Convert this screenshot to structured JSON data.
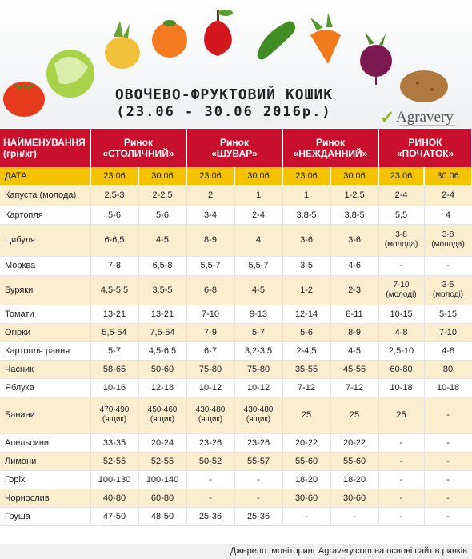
{
  "title_line1": "ОВОЧЕВО-ФРУКТОВИЙ КОШИК",
  "title_line2": "(23.06 - 30.06 2016р.)",
  "logo": "Agravery",
  "header": {
    "name": "НАЙМЕНУВАННЯ (грн/кг)",
    "markets": [
      "Ринок «СТОЛИЧНИЙ»",
      "Ринок «ШУВАР»",
      "Ринок «НЕЖДАННИЙ»",
      "РИНОК «ПОЧАТОК»"
    ]
  },
  "date_row": {
    "label": "ДАТА",
    "dates": [
      "23.06",
      "30.06",
      "23.06",
      "30.06",
      "23.06",
      "30.06",
      "23.06",
      "30.06"
    ]
  },
  "rows": [
    {
      "name": "Капуста (молода)",
      "values": [
        "2,5-3",
        "2-2,5",
        "2",
        "1",
        "1",
        "1-2,5",
        "2-4",
        "2-4"
      ]
    },
    {
      "name": "Картопля",
      "values": [
        "5-6",
        "5-6",
        "3-4",
        "2-4",
        "3,8-5",
        "3,8-5",
        "5,5",
        "4"
      ]
    },
    {
      "name": "Цибуля",
      "values": [
        "6-6,5",
        "4-5",
        "8-9",
        "4",
        "3-6",
        "3-6",
        "3-8 (молода)",
        "3-8 (молода)"
      ]
    },
    {
      "name": "Морква",
      "values": [
        "7-8",
        "6,5-8",
        "5,5-7",
        "5,5-7",
        "3-5",
        "4-6",
        "-",
        "-"
      ]
    },
    {
      "name": "Буряки",
      "values": [
        "4,5-5,5",
        "3,5-5",
        "6-8",
        "4-5",
        "1-2",
        "2-3",
        "7-10 (молоді)",
        "3-5 (молоді)"
      ]
    },
    {
      "name": "Томати",
      "values": [
        "13-21",
        "13-21",
        "7-10",
        "9-13",
        "12-14",
        "8-11",
        "10-15",
        "5-15"
      ]
    },
    {
      "name": "Огірки",
      "values": [
        "5,5-54",
        "7,5-54",
        "7-9",
        "5-7",
        "5-6",
        "8-9",
        "4-8",
        "7-10"
      ]
    },
    {
      "name": "Картопля рання",
      "values": [
        "5-7",
        "4,5-6,5",
        "6-7",
        "3,2-3,5",
        "2-4,5",
        "4-5",
        "2,5-10",
        "4-8"
      ]
    },
    {
      "name": "Часник",
      "values": [
        "58-65",
        "50-60",
        "75-80",
        "75-80",
        "35-55",
        "45-55",
        "60-80",
        "80"
      ]
    },
    {
      "name": "Яблука",
      "values": [
        "10-16",
        "12-18",
        "10-12",
        "10-12",
        "7-12",
        "7-12",
        "10-18",
        "10-18"
      ]
    },
    {
      "name": "Банани",
      "values": [
        "470-490 (ящик)",
        "450-460 (ящик)",
        "430-480 (ящик)",
        "430-480 (ящик)",
        "25",
        "25",
        "25",
        "-"
      ]
    },
    {
      "name": "Апельсини",
      "values": [
        "33-35",
        "20-24",
        "23-26",
        "23-26",
        "20-22",
        "20-22",
        "-",
        "-"
      ]
    },
    {
      "name": "Лимони",
      "values": [
        "52-55",
        "52-55",
        "50-52",
        "55-57",
        "55-60",
        "55-60",
        "-",
        "-"
      ]
    },
    {
      "name": "Горіх",
      "values": [
        "100-130",
        "100-140",
        "-",
        "-",
        "18-20",
        "18-20",
        "-",
        "-"
      ]
    },
    {
      "name": "Чорнослив",
      "values": [
        "40-80",
        "60-80",
        "-",
        "-",
        "30-60",
        "30-60",
        "-",
        "-"
      ]
    },
    {
      "name": "Груша",
      "values": [
        "47-50",
        "48-50",
        "25-36",
        "25-36",
        "-",
        "-",
        "-",
        "-"
      ]
    }
  ],
  "footer": "Джерело: моніторинг Agravery.com на основі сайтів ринків",
  "colors": {
    "header_red": "#c8102e",
    "date_yellow": "#f6c300",
    "stripe": "#fbeecf"
  },
  "illustrations": [
    "tomato-icon",
    "cabbage-icon",
    "onion-icon",
    "orange-icon",
    "apple-icon",
    "cucumber-icon",
    "carrot-icon",
    "beet-icon",
    "potato-icon"
  ]
}
